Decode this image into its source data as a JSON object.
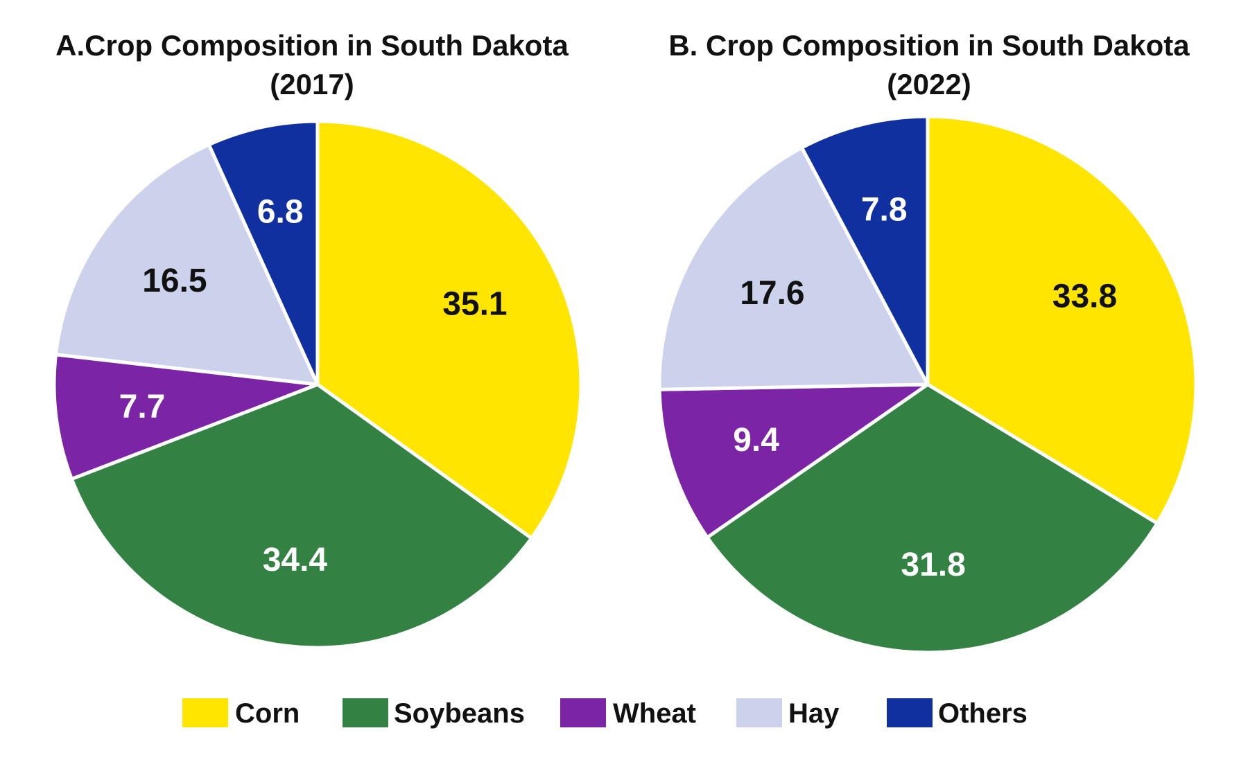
{
  "chart_data": [
    {
      "type": "pie",
      "title_line1": "A.Crop Composition in South Dakota",
      "title_line2": "(2017)",
      "categories": [
        "Corn",
        "Soybeans",
        "Wheat",
        "Hay",
        "Others"
      ],
      "values": [
        35.1,
        34.4,
        7.7,
        16.5,
        6.8
      ]
    },
    {
      "type": "pie",
      "title_line1": "B. Crop Composition in South Dakota",
      "title_line2": "(2022)",
      "categories": [
        "Corn",
        "Soybeans",
        "Wheat",
        "Hay",
        "Others"
      ],
      "values": [
        33.8,
        31.8,
        9.4,
        17.6,
        7.8
      ]
    }
  ],
  "legend": {
    "placement": "bottom",
    "items": [
      {
        "label": "Corn",
        "color": "#FFE500"
      },
      {
        "label": "Soybeans",
        "color": "#338244"
      },
      {
        "label": "Wheat",
        "color": "#7B24A6"
      },
      {
        "label": "Hay",
        "color": "#CDD2EC"
      },
      {
        "label": "Others",
        "color": "#0F309E"
      }
    ]
  },
  "colors": {
    "Corn": "#FFE500",
    "Soybeans": "#338244",
    "Wheat": "#7B24A6",
    "Hay": "#CDD2EC",
    "Others": "#0F309E"
  },
  "label_colors": {
    "Corn": "#111111",
    "Soybeans": "#ffffff",
    "Wheat": "#ffffff",
    "Hay": "#111111",
    "Others": "#ffffff"
  }
}
